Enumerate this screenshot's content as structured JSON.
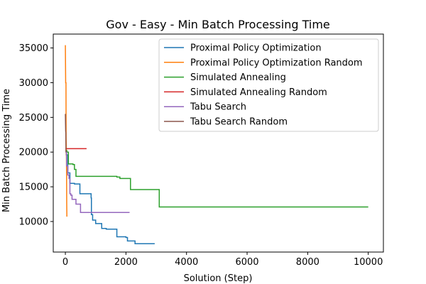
{
  "chart_data": {
    "type": "line",
    "title": "Gov - Easy - Min Batch Processing Time",
    "xlabel": "Solution (Step)",
    "ylabel": "Min Batch Processing Time",
    "xlim": [
      -400,
      10500
    ],
    "ylim": [
      5600,
      37000
    ],
    "xticks": [
      0,
      2000,
      4000,
      6000,
      8000,
      10000
    ],
    "yticks": [
      10000,
      15000,
      20000,
      25000,
      30000,
      35000
    ],
    "grid": false,
    "legend_position": "top-right",
    "series": [
      {
        "name": "Proximal Policy Optimization",
        "color": "#1f77b4",
        "step": true,
        "points": [
          [
            0,
            20200
          ],
          [
            30,
            19600
          ],
          [
            80,
            17000
          ],
          [
            150,
            15500
          ],
          [
            300,
            15400
          ],
          [
            480,
            14000
          ],
          [
            850,
            13400
          ],
          [
            860,
            11000
          ],
          [
            900,
            10200
          ],
          [
            1000,
            9700
          ],
          [
            1200,
            9000
          ],
          [
            1350,
            8900
          ],
          [
            1600,
            8900
          ],
          [
            1700,
            7800
          ],
          [
            2000,
            7700
          ],
          [
            2050,
            7200
          ],
          [
            2300,
            6800
          ],
          [
            2950,
            6800
          ]
        ]
      },
      {
        "name": "Proximal Policy Optimization Random",
        "color": "#ff7f0e",
        "step": false,
        "points": [
          [
            0,
            35400
          ],
          [
            10,
            30000
          ],
          [
            20,
            30000
          ],
          [
            25,
            22000
          ],
          [
            30,
            21000
          ],
          [
            40,
            17000
          ],
          [
            45,
            12500
          ],
          [
            50,
            10700
          ]
        ]
      },
      {
        "name": "Simulated Annealing",
        "color": "#2ca02c",
        "step": true,
        "points": [
          [
            0,
            20200
          ],
          [
            50,
            20000
          ],
          [
            100,
            18300
          ],
          [
            250,
            18200
          ],
          [
            300,
            17500
          ],
          [
            350,
            16500
          ],
          [
            1700,
            16400
          ],
          [
            1800,
            16200
          ],
          [
            2150,
            14600
          ],
          [
            3100,
            14600
          ],
          [
            3100,
            12100
          ],
          [
            10000,
            12100
          ]
        ]
      },
      {
        "name": "Simulated Annealing Random",
        "color": "#d62728",
        "step": true,
        "points": [
          [
            0,
            20500
          ],
          [
            700,
            20500
          ]
        ]
      },
      {
        "name": "Tabu Search",
        "color": "#9467bd",
        "step": true,
        "points": [
          [
            0,
            20000
          ],
          [
            40,
            18000
          ],
          [
            80,
            16700
          ],
          [
            120,
            16200
          ],
          [
            150,
            14000
          ],
          [
            180,
            13800
          ],
          [
            220,
            13200
          ],
          [
            350,
            12500
          ],
          [
            500,
            11300
          ],
          [
            2120,
            11300
          ]
        ]
      },
      {
        "name": "Tabu Search Random",
        "color": "#8c564b",
        "step": false,
        "points": [
          [
            0,
            25500
          ],
          [
            10,
            23000
          ],
          [
            15,
            22800
          ],
          [
            20,
            20000
          ]
        ]
      }
    ]
  }
}
